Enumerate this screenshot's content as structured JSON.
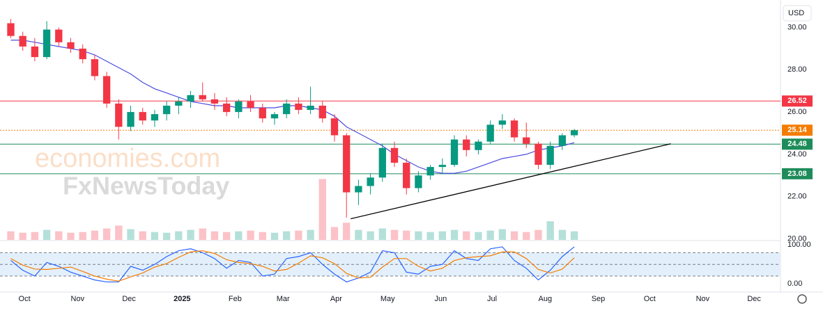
{
  "currency": "USD",
  "chart_data": {
    "type": "candlestick",
    "up_color": "#089981",
    "down_color": "#f23645",
    "open": [
      30.2,
      29.6,
      29.1,
      28.6,
      29.9,
      29.3,
      29.0,
      28.5,
      27.7,
      26.4,
      25.3,
      26.0,
      25.6,
      25.9,
      26.3,
      26.5,
      26.8,
      26.6,
      26.4,
      26.0,
      26.5,
      26.2,
      25.7,
      25.9,
      26.4,
      26.1,
      26.3,
      25.7,
      24.9,
      22.2,
      22.5,
      22.9,
      24.3,
      23.6,
      22.4,
      23.0,
      23.4,
      23.5,
      24.7,
      24.2,
      24.6,
      25.4,
      25.6,
      24.8,
      24.5,
      23.5,
      24.4,
      24.9
    ],
    "high": [
      30.4,
      29.8,
      29.5,
      30.3,
      30.0,
      29.5,
      29.2,
      28.7,
      27.9,
      26.6,
      26.3,
      26.2,
      26.1,
      26.5,
      26.7,
      27.0,
      27.4,
      26.9,
      26.7,
      26.6,
      26.8,
      26.4,
      26.0,
      26.6,
      26.7,
      27.2,
      26.5,
      25.9,
      25.0,
      22.8,
      23.1,
      24.5,
      24.6,
      23.8,
      23.2,
      23.5,
      23.8,
      24.9,
      24.9,
      24.7,
      25.6,
      25.9,
      25.7,
      25.5,
      24.6,
      24.6,
      25.0,
      25.2
    ],
    "low": [
      29.5,
      28.9,
      28.4,
      28.5,
      29.1,
      28.8,
      28.3,
      27.5,
      26.2,
      24.7,
      25.1,
      25.4,
      25.3,
      25.6,
      25.9,
      26.2,
      26.5,
      26.1,
      25.8,
      25.7,
      26.0,
      25.5,
      25.4,
      25.7,
      25.9,
      25.9,
      25.5,
      24.6,
      21.0,
      21.6,
      22.1,
      22.7,
      23.4,
      22.1,
      22.2,
      22.8,
      23.1,
      23.4,
      23.9,
      24.0,
      24.5,
      25.2,
      24.6,
      24.3,
      23.3,
      23.3,
      24.2,
      24.8
    ],
    "close": [
      29.6,
      29.1,
      28.6,
      29.9,
      29.3,
      29.0,
      28.5,
      27.7,
      26.4,
      25.3,
      26.0,
      25.6,
      25.9,
      26.3,
      26.5,
      26.8,
      26.6,
      26.4,
      26.0,
      26.5,
      26.2,
      25.7,
      25.9,
      26.4,
      26.1,
      26.3,
      25.7,
      24.9,
      22.2,
      22.5,
      22.9,
      24.3,
      23.6,
      22.4,
      23.0,
      23.4,
      23.5,
      24.7,
      24.2,
      24.6,
      25.4,
      25.6,
      24.8,
      24.5,
      23.5,
      24.4,
      24.9,
      25.14
    ],
    "xlim": [
      -0.9,
      64.2
    ],
    "xticks": [
      {
        "value": 1.14,
        "label": "Oct"
      },
      {
        "value": 5.57,
        "label": "Nov"
      },
      {
        "value": 9.86,
        "label": "Dec"
      },
      {
        "value": 14.29,
        "label": "2025"
      },
      {
        "value": 18.71,
        "label": "Feb"
      },
      {
        "value": 22.71,
        "label": "Mar"
      },
      {
        "value": 27.14,
        "label": "Apr"
      },
      {
        "value": 31.43,
        "label": "May"
      },
      {
        "value": 35.86,
        "label": "Jun"
      },
      {
        "value": 40.14,
        "label": "Jul"
      },
      {
        "value": 44.57,
        "label": "Aug"
      },
      {
        "value": 49,
        "label": "Sep"
      },
      {
        "value": 53.29,
        "label": "Oct"
      },
      {
        "value": 57.71,
        "label": "Nov"
      },
      {
        "value": 62,
        "label": "Dec"
      }
    ],
    "ylim": [
      19.95,
      31.3
    ],
    "yticks": [
      {
        "value": 20,
        "label": "20.00"
      },
      {
        "value": 22,
        "label": "22.00"
      },
      {
        "value": 24,
        "label": "24.00"
      },
      {
        "value": 26,
        "label": "26.00"
      },
      {
        "value": 28,
        "label": "28.00"
      },
      {
        "value": 30,
        "label": "30.00"
      }
    ],
    "moving_average": {
      "color": "#4a4ae0",
      "values": [
        29.4,
        29.4,
        29.3,
        29.2,
        29.1,
        29.0,
        28.9,
        28.7,
        28.4,
        28.1,
        27.8,
        27.4,
        27.1,
        26.9,
        26.7,
        26.5,
        26.4,
        26.3,
        26.3,
        26.2,
        26.2,
        26.2,
        26.2,
        26.3,
        26.3,
        26.2,
        26.1,
        25.8,
        25.3,
        25.0,
        24.7,
        24.4,
        24.0,
        23.7,
        23.4,
        23.2,
        23.1,
        23.1,
        23.2,
        23.4,
        23.6,
        23.8,
        23.9,
        24.0,
        24.2,
        24.3,
        24.4,
        24.55
      ]
    },
    "volume": {
      "ylim": [
        0,
        335
      ],
      "values": [
        12,
        10,
        11,
        14,
        12,
        10,
        11,
        13,
        16,
        20,
        15,
        12,
        11,
        10,
        12,
        14,
        16,
        12,
        11,
        12,
        13,
        11,
        10,
        12,
        13,
        14,
        85,
        18,
        24,
        14,
        12,
        16,
        14,
        13,
        12,
        11,
        12,
        14,
        12,
        11,
        13,
        15,
        12,
        11,
        14,
        26,
        14,
        12
      ]
    },
    "levels": [
      {
        "value": 26.52,
        "color": "#f23645",
        "style": "solid"
      },
      {
        "value": 25.14,
        "color": "#f57c00",
        "style": "dotted"
      },
      {
        "value": 24.48,
        "color": "#1e8c5a",
        "style": "solid"
      },
      {
        "value": 23.08,
        "color": "#1e8c5a",
        "style": "solid"
      }
    ],
    "trendline": {
      "x": [
        28.35,
        55.05
      ],
      "y": [
        20.95,
        24.5
      ],
      "color": "#000000"
    },
    "watermark": [
      "economies.com",
      "FxNewsToday"
    ],
    "oscillator": {
      "ylim": [
        -21,
        111
      ],
      "yticks": [
        {
          "value": 100,
          "label": "100.00"
        },
        {
          "value": 0,
          "label": "0.00"
        }
      ],
      "bands": [
        20,
        50,
        80
      ],
      "series": [
        {
          "color": "#2962ff",
          "values": [
            60,
            35,
            20,
            55,
            45,
            30,
            20,
            10,
            5,
            5,
            45,
            35,
            50,
            70,
            85,
            90,
            80,
            65,
            40,
            60,
            55,
            20,
            25,
            65,
            70,
            80,
            50,
            25,
            5,
            15,
            30,
            85,
            80,
            30,
            25,
            45,
            50,
            85,
            65,
            60,
            90,
            95,
            60,
            40,
            10,
            35,
            70,
            95
          ]
        },
        {
          "color": "#f57c00",
          "values": [
            65,
            48,
            38,
            37,
            40,
            43,
            32,
            20,
            12,
            7,
            18,
            28,
            43,
            52,
            68,
            82,
            85,
            78,
            62,
            55,
            52,
            45,
            33,
            37,
            53,
            72,
            67,
            52,
            27,
            15,
            17,
            43,
            65,
            65,
            45,
            33,
            40,
            60,
            67,
            70,
            72,
            82,
            82,
            65,
            37,
            28,
            38,
            67
          ]
        }
      ]
    }
  }
}
